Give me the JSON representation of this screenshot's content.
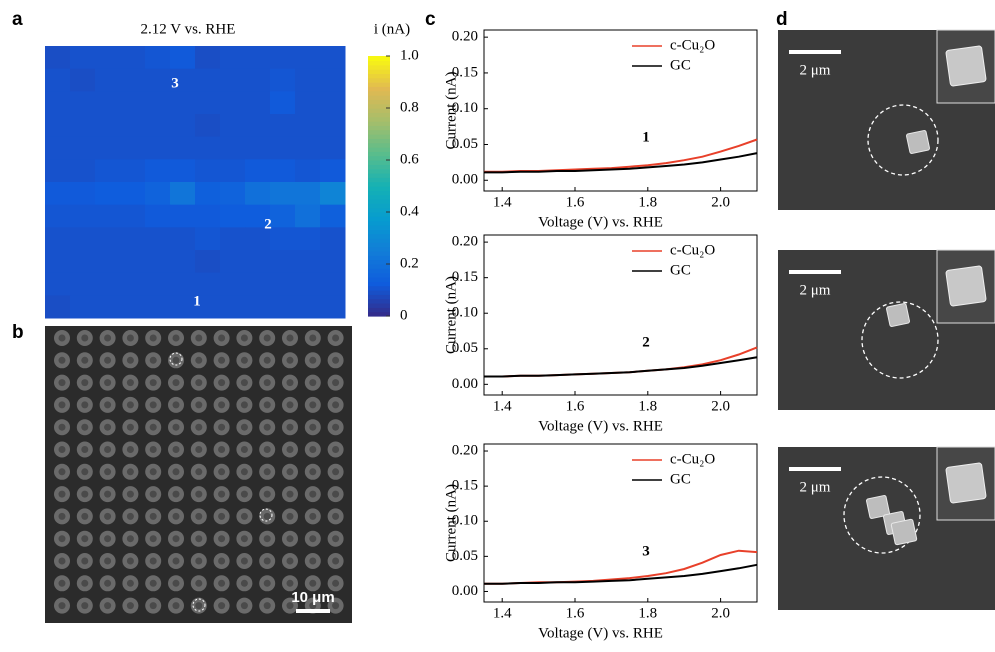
{
  "panel_labels": [
    "a",
    "b",
    "c",
    "d"
  ],
  "chart_data": [
    {
      "type": "heatmap",
      "title": "2.12 V vs. RHE",
      "colorbar_label": "i (nA)",
      "colormap": "parula",
      "zlim": [
        0,
        1
      ],
      "zticks": [
        0,
        0.2,
        0.4,
        0.6,
        0.8,
        {
          "value": 1,
          "label": "1.0"
        }
      ],
      "annotations": [
        "3",
        "2",
        "1"
      ],
      "z": [
        [
          0.09,
          0.1,
          0.1,
          0.1,
          0.11,
          0.12,
          0.09,
          0.1,
          0.1,
          0.1,
          0.1,
          0.1
        ],
        [
          0.1,
          0.09,
          0.1,
          0.1,
          0.1,
          0.1,
          0.1,
          0.1,
          0.1,
          0.11,
          0.1,
          0.1
        ],
        [
          0.1,
          0.1,
          0.1,
          0.1,
          0.1,
          0.1,
          0.1,
          0.1,
          0.1,
          0.12,
          0.1,
          0.1
        ],
        [
          0.1,
          0.1,
          0.1,
          0.1,
          0.1,
          0.1,
          0.09,
          0.1,
          0.1,
          0.1,
          0.1,
          0.1
        ],
        [
          0.1,
          0.1,
          0.1,
          0.1,
          0.1,
          0.1,
          0.1,
          0.1,
          0.1,
          0.1,
          0.1,
          0.1
        ],
        [
          0.1,
          0.1,
          0.11,
          0.11,
          0.12,
          0.12,
          0.11,
          0.11,
          0.12,
          0.12,
          0.11,
          0.12
        ],
        [
          0.12,
          0.12,
          0.13,
          0.13,
          0.15,
          0.22,
          0.14,
          0.15,
          0.2,
          0.22,
          0.22,
          0.28
        ],
        [
          0.11,
          0.11,
          0.11,
          0.11,
          0.12,
          0.12,
          0.12,
          0.13,
          0.13,
          0.15,
          0.2,
          0.14
        ],
        [
          0.1,
          0.1,
          0.1,
          0.1,
          0.1,
          0.1,
          0.11,
          0.1,
          0.1,
          0.11,
          0.11,
          0.1
        ],
        [
          0.1,
          0.1,
          0.1,
          0.1,
          0.1,
          0.1,
          0.09,
          0.1,
          0.1,
          0.1,
          0.1,
          0.1
        ],
        [
          0.1,
          0.1,
          0.1,
          0.1,
          0.1,
          0.1,
          0.1,
          0.1,
          0.1,
          0.1,
          0.1,
          0.1
        ],
        [
          0.09,
          0.1,
          0.1,
          0.1,
          0.1,
          0.1,
          0.1,
          0.1,
          0.1,
          0.1,
          0.1,
          0.1
        ]
      ]
    },
    {
      "type": "line",
      "annotation": "1",
      "xlabel": "Voltage (V) vs. RHE",
      "ylabel": "Current (nA)",
      "legend": "upper right",
      "xlim": [
        1.35,
        2.1
      ],
      "ylim": [
        -0.015,
        0.21
      ],
      "xticks": [
        1.4,
        1.6,
        1.8,
        {
          "value": 2,
          "label": "2.0"
        }
      ],
      "yticks": [
        {
          "value": 0,
          "label": "0.00"
        },
        0.05,
        {
          "value": 0.1,
          "label": "0.10"
        },
        0.15,
        {
          "value": 0.2,
          "label": "0.20"
        }
      ],
      "x": [
        1.35,
        1.4,
        1.45,
        1.5,
        1.55,
        1.6,
        1.65,
        1.7,
        1.75,
        1.8,
        1.85,
        1.9,
        1.95,
        2.0,
        2.05,
        2.1
      ],
      "series": [
        {
          "name": "c-Cu₂O",
          "color": "#e8402a",
          "values": [
            0.012,
            0.012,
            0.013,
            0.013,
            0.014,
            0.015,
            0.016,
            0.017,
            0.019,
            0.021,
            0.024,
            0.028,
            0.033,
            0.04,
            0.048,
            0.057
          ]
        },
        {
          "name": "GC",
          "color": "#000000",
          "values": [
            0.011,
            0.011,
            0.012,
            0.012,
            0.013,
            0.013,
            0.014,
            0.015,
            0.016,
            0.018,
            0.02,
            0.022,
            0.025,
            0.029,
            0.033,
            0.038
          ]
        }
      ]
    },
    {
      "type": "line",
      "annotation": "2",
      "xlabel": "Voltage (V) vs. RHE",
      "ylabel": "Current (nA)",
      "legend": "upper right",
      "xlim": [
        1.35,
        2.1
      ],
      "ylim": [
        -0.015,
        0.21
      ],
      "xticks": [
        1.4,
        1.6,
        1.8,
        {
          "value": 2,
          "label": "2.0"
        }
      ],
      "yticks": [
        {
          "value": 0,
          "label": "0.00"
        },
        0.05,
        {
          "value": 0.1,
          "label": "0.10"
        },
        0.15,
        {
          "value": 0.2,
          "label": "0.20"
        }
      ],
      "x": [
        1.35,
        1.4,
        1.45,
        1.5,
        1.55,
        1.6,
        1.65,
        1.7,
        1.75,
        1.8,
        1.85,
        1.9,
        1.95,
        2.0,
        2.05,
        2.1
      ],
      "series": [
        {
          "name": "c-Cu₂O",
          "color": "#e8402a",
          "values": [
            0.011,
            0.011,
            0.012,
            0.012,
            0.013,
            0.014,
            0.015,
            0.016,
            0.017,
            0.019,
            0.021,
            0.024,
            0.028,
            0.034,
            0.042,
            0.052
          ]
        },
        {
          "name": "GC",
          "color": "#000000",
          "values": [
            0.011,
            0.011,
            0.012,
            0.012,
            0.013,
            0.014,
            0.015,
            0.016,
            0.017,
            0.019,
            0.021,
            0.023,
            0.026,
            0.03,
            0.034,
            0.038
          ]
        }
      ]
    },
    {
      "type": "line",
      "annotation": "3",
      "xlabel": "Voltage (V) vs. RHE",
      "ylabel": "Current (nA)",
      "legend": "upper right",
      "xlim": [
        1.35,
        2.1
      ],
      "ylim": [
        -0.015,
        0.21
      ],
      "xticks": [
        1.4,
        1.6,
        1.8,
        {
          "value": 2,
          "label": "2.0"
        }
      ],
      "yticks": [
        {
          "value": 0,
          "label": "0.00"
        },
        0.05,
        {
          "value": 0.1,
          "label": "0.10"
        },
        0.15,
        {
          "value": 0.2,
          "label": "0.20"
        }
      ],
      "x": [
        1.35,
        1.4,
        1.45,
        1.5,
        1.55,
        1.6,
        1.65,
        1.7,
        1.75,
        1.8,
        1.85,
        1.9,
        1.95,
        2.0,
        2.05,
        2.1
      ],
      "series": [
        {
          "name": "c-Cu₂O",
          "color": "#e8402a",
          "values": [
            0.011,
            0.011,
            0.012,
            0.013,
            0.013,
            0.014,
            0.015,
            0.017,
            0.019,
            0.022,
            0.026,
            0.032,
            0.041,
            0.052,
            0.058,
            0.056
          ]
        },
        {
          "name": "GC",
          "color": "#000000",
          "values": [
            0.011,
            0.011,
            0.012,
            0.012,
            0.013,
            0.013,
            0.014,
            0.015,
            0.016,
            0.018,
            0.02,
            0.022,
            0.025,
            0.029,
            0.033,
            0.038
          ]
        }
      ]
    }
  ],
  "sem_b": {
    "scale_bar": "10 μm"
  },
  "sem_d": {
    "scale_bars": [
      "2 μm",
      "2 μm",
      "2 μm"
    ]
  }
}
